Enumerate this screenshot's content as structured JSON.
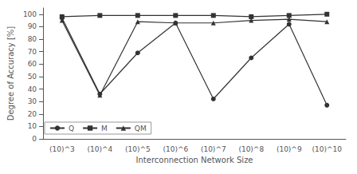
{
  "chart_data": {
    "type": "line",
    "categories": [
      "(10)^3",
      "(10)^4",
      "(10)^5",
      "(10)^6",
      "(10)^7",
      "(10)^8",
      "(10)^9",
      "(10)^10"
    ],
    "series": [
      {
        "name": "Q",
        "color": "#333333",
        "marker": "circle",
        "values": [
          97,
          36,
          69,
          93,
          32,
          65,
          92,
          27
        ]
      },
      {
        "name": "M",
        "color": "#333333",
        "marker": "square",
        "values": [
          98,
          99,
          99,
          99,
          99,
          98,
          99,
          100
        ]
      },
      {
        "name": "QM",
        "color": "#333333",
        "marker": "triangle",
        "values": [
          95,
          35,
          94,
          93,
          93,
          95,
          96,
          94
        ]
      }
    ],
    "xlabel": "Interconnection Network Size",
    "ylabel": "Degree of Accuracy [%]",
    "ylim": [
      0,
      105
    ],
    "yticks": [
      0,
      10,
      20,
      30,
      40,
      50,
      60,
      70,
      80,
      90,
      100
    ],
    "grid": false,
    "legend": "lower left"
  }
}
